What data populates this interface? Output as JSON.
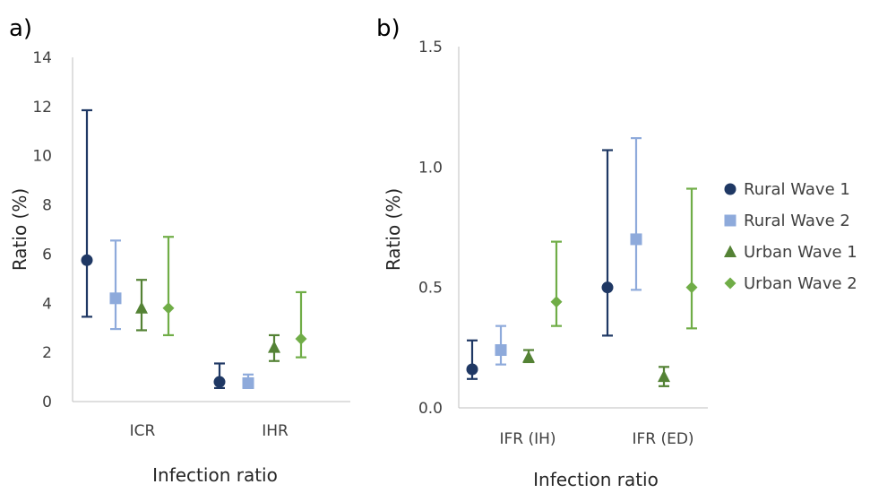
{
  "colors": {
    "Rural Wave 1": "#1f3864",
    "Rural Wave 2": "#8eaadb",
    "Urban Wave 1": "#548235",
    "Urban Wave 2": "#70ad47",
    "axis": "#bfbfbf"
  },
  "legend": [
    {
      "name": "Rural Wave 1",
      "marker": "circle"
    },
    {
      "name": "Rural Wave 2",
      "marker": "square"
    },
    {
      "name": "Urban Wave 1",
      "marker": "triangle"
    },
    {
      "name": "Urban Wave 2",
      "marker": "diamond"
    }
  ],
  "chart_data": [
    {
      "panel_label": "a)",
      "type": "scatter",
      "ylabel": "Ratio (%)",
      "xlabel": "Infection ratio",
      "ylim": [
        0,
        14
      ],
      "yticks": [
        "0",
        "2",
        "4",
        "6",
        "8",
        "10",
        "12",
        "14"
      ],
      "ytick_values": [
        0,
        2,
        4,
        6,
        8,
        10,
        12,
        14
      ],
      "categories": [
        "ICR",
        "IHR"
      ],
      "grid": false,
      "series": [
        {
          "name": "Rural Wave 1",
          "marker": "circle",
          "values": [
            5.75,
            0.8
          ],
          "lower": [
            3.45,
            0.55
          ],
          "upper": [
            11.85,
            1.55
          ]
        },
        {
          "name": "Rural Wave 2",
          "marker": "square",
          "values": [
            4.2,
            0.75
          ],
          "lower": [
            2.95,
            0.55
          ],
          "upper": [
            6.55,
            1.1
          ]
        },
        {
          "name": "Urban Wave 1",
          "marker": "triangle",
          "values": [
            3.8,
            2.2
          ],
          "lower": [
            2.9,
            1.65
          ],
          "upper": [
            4.95,
            2.7
          ]
        },
        {
          "name": "Urban Wave 2",
          "marker": "diamond",
          "values": [
            3.8,
            2.55
          ],
          "lower": [
            2.7,
            1.8
          ],
          "upper": [
            6.7,
            4.45
          ]
        }
      ]
    },
    {
      "panel_label": "b)",
      "type": "scatter",
      "ylabel": "Ratio (%)",
      "xlabel": "Infection ratio",
      "ylim": [
        0,
        1.5
      ],
      "yticks": [
        "0.0",
        "0.5",
        "1.0",
        "1.5"
      ],
      "ytick_values": [
        0,
        0.5,
        1.0,
        1.5
      ],
      "categories": [
        "IFR (IH)",
        "IFR (ED)"
      ],
      "grid": false,
      "legend_position": "right",
      "series": [
        {
          "name": "Rural Wave 1",
          "marker": "circle",
          "values": [
            0.16,
            0.5
          ],
          "lower": [
            0.12,
            0.3
          ],
          "upper": [
            0.28,
            1.07
          ]
        },
        {
          "name": "Rural Wave 2",
          "marker": "square",
          "values": [
            0.24,
            0.7
          ],
          "lower": [
            0.18,
            0.49
          ],
          "upper": [
            0.34,
            1.12
          ]
        },
        {
          "name": "Urban Wave 1",
          "marker": "triangle",
          "values": [
            0.21,
            0.13
          ],
          "lower": [
            0.19,
            0.09
          ],
          "upper": [
            0.24,
            0.17
          ]
        },
        {
          "name": "Urban Wave 2",
          "marker": "diamond",
          "values": [
            0.44,
            0.5
          ],
          "lower": [
            0.34,
            0.33
          ],
          "upper": [
            0.69,
            0.91
          ]
        }
      ]
    }
  ]
}
